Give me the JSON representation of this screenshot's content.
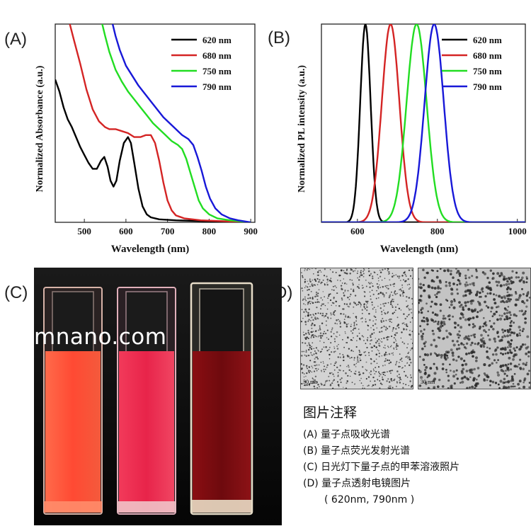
{
  "panels": {
    "a": "(A)",
    "b": "(B)",
    "c": "(C)",
    "d": "(D)"
  },
  "watermark": "mnano.com",
  "caption": {
    "title": "图片注释",
    "lines": [
      "(A) 量子点吸收光谱",
      "(B) 量子点荧光发射光谱",
      "(C) 日光灯下量子点的甲苯溶液照片",
      "(D) 量子点透射电镜图片",
      "( 620nm, 790nm )"
    ]
  },
  "tem": {
    "left_scale": "30 nm",
    "right_scale": "30 nm"
  },
  "colors": {
    "s620": "#000000",
    "s680": "#d42424",
    "s750": "#22dd22",
    "s790": "#1818d8"
  },
  "chart_data": [
    {
      "type": "line",
      "panel": "A",
      "xlabel": "Wavelength (nm)",
      "ylabel": "Normalized Absorbance (a.u.)",
      "xlim": [
        430,
        910
      ],
      "ylim": [
        0,
        1
      ],
      "xticks": [
        500,
        600,
        700,
        800,
        900
      ],
      "legend": "top-right",
      "series": [
        {
          "name": "620 nm",
          "color_key": "s620",
          "points": [
            [
              430,
              0.72
            ],
            [
              440,
              0.66
            ],
            [
              450,
              0.58
            ],
            [
              460,
              0.52
            ],
            [
              470,
              0.48
            ],
            [
              480,
              0.43
            ],
            [
              490,
              0.38
            ],
            [
              500,
              0.34
            ],
            [
              510,
              0.3
            ],
            [
              520,
              0.27
            ],
            [
              530,
              0.27
            ],
            [
              540,
              0.31
            ],
            [
              548,
              0.33
            ],
            [
              556,
              0.28
            ],
            [
              563,
              0.21
            ],
            [
              570,
              0.18
            ],
            [
              577,
              0.21
            ],
            [
              585,
              0.31
            ],
            [
              595,
              0.4
            ],
            [
              605,
              0.43
            ],
            [
              612,
              0.4
            ],
            [
              620,
              0.3
            ],
            [
              630,
              0.17
            ],
            [
              640,
              0.08
            ],
            [
              650,
              0.04
            ],
            [
              660,
              0.025
            ],
            [
              680,
              0.015
            ],
            [
              720,
              0.01
            ],
            [
              800,
              0.005
            ],
            [
              900,
              0.0
            ]
          ]
        },
        {
          "name": "680 nm",
          "color_key": "s680",
          "points": [
            [
              465,
              1.0
            ],
            [
              475,
              0.92
            ],
            [
              490,
              0.8
            ],
            [
              505,
              0.67
            ],
            [
              520,
              0.57
            ],
            [
              535,
              0.51
            ],
            [
              550,
              0.48
            ],
            [
              560,
              0.47
            ],
            [
              575,
              0.47
            ],
            [
              590,
              0.46
            ],
            [
              605,
              0.45
            ],
            [
              620,
              0.43
            ],
            [
              635,
              0.43
            ],
            [
              648,
              0.44
            ],
            [
              660,
              0.44
            ],
            [
              670,
              0.4
            ],
            [
              680,
              0.31
            ],
            [
              690,
              0.2
            ],
            [
              700,
              0.11
            ],
            [
              710,
              0.06
            ],
            [
              720,
              0.035
            ],
            [
              740,
              0.02
            ],
            [
              780,
              0.01
            ],
            [
              900,
              0.0
            ]
          ]
        },
        {
          "name": "750 nm",
          "color_key": "s750",
          "points": [
            [
              543,
              1.0
            ],
            [
              550,
              0.94
            ],
            [
              560,
              0.86
            ],
            [
              575,
              0.77
            ],
            [
              590,
              0.71
            ],
            [
              605,
              0.66
            ],
            [
              620,
              0.62
            ],
            [
              635,
              0.58
            ],
            [
              650,
              0.54
            ],
            [
              665,
              0.5
            ],
            [
              680,
              0.47
            ],
            [
              695,
              0.44
            ],
            [
              710,
              0.41
            ],
            [
              725,
              0.39
            ],
            [
              735,
              0.37
            ],
            [
              745,
              0.32
            ],
            [
              755,
              0.25
            ],
            [
              765,
              0.18
            ],
            [
              775,
              0.11
            ],
            [
              785,
              0.07
            ],
            [
              800,
              0.04
            ],
            [
              820,
              0.02
            ],
            [
              850,
              0.01
            ],
            [
              900,
              0.0
            ]
          ]
        },
        {
          "name": "790 nm",
          "color_key": "s790",
          "points": [
            [
              568,
              1.0
            ],
            [
              575,
              0.94
            ],
            [
              585,
              0.87
            ],
            [
              600,
              0.79
            ],
            [
              615,
              0.74
            ],
            [
              630,
              0.69
            ],
            [
              645,
              0.65
            ],
            [
              660,
              0.61
            ],
            [
              675,
              0.57
            ],
            [
              690,
              0.53
            ],
            [
              705,
              0.5
            ],
            [
              720,
              0.47
            ],
            [
              735,
              0.44
            ],
            [
              750,
              0.42
            ],
            [
              762,
              0.39
            ],
            [
              772,
              0.33
            ],
            [
              782,
              0.26
            ],
            [
              792,
              0.18
            ],
            [
              802,
              0.12
            ],
            [
              815,
              0.07
            ],
            [
              830,
              0.04
            ],
            [
              850,
              0.02
            ],
            [
              870,
              0.01
            ],
            [
              900,
              0.0
            ]
          ]
        }
      ]
    },
    {
      "type": "line",
      "panel": "B",
      "xlabel": "Wavelength (nm)",
      "ylabel": "Normalized PL intensity (a.u.)",
      "xlim": [
        510,
        1020
      ],
      "ylim": [
        0,
        1
      ],
      "xticks": [
        600,
        800,
        1000
      ],
      "legend": "top-right",
      "series": [
        {
          "name": "620 nm",
          "color_key": "s620",
          "peak": 620,
          "width": 13
        },
        {
          "name": "680 nm",
          "color_key": "s680",
          "peak": 683,
          "width": 22
        },
        {
          "name": "750 nm",
          "color_key": "s750",
          "peak": 748,
          "width": 25
        },
        {
          "name": "790 nm",
          "color_key": "s790",
          "peak": 792,
          "width": 24
        }
      ]
    }
  ]
}
